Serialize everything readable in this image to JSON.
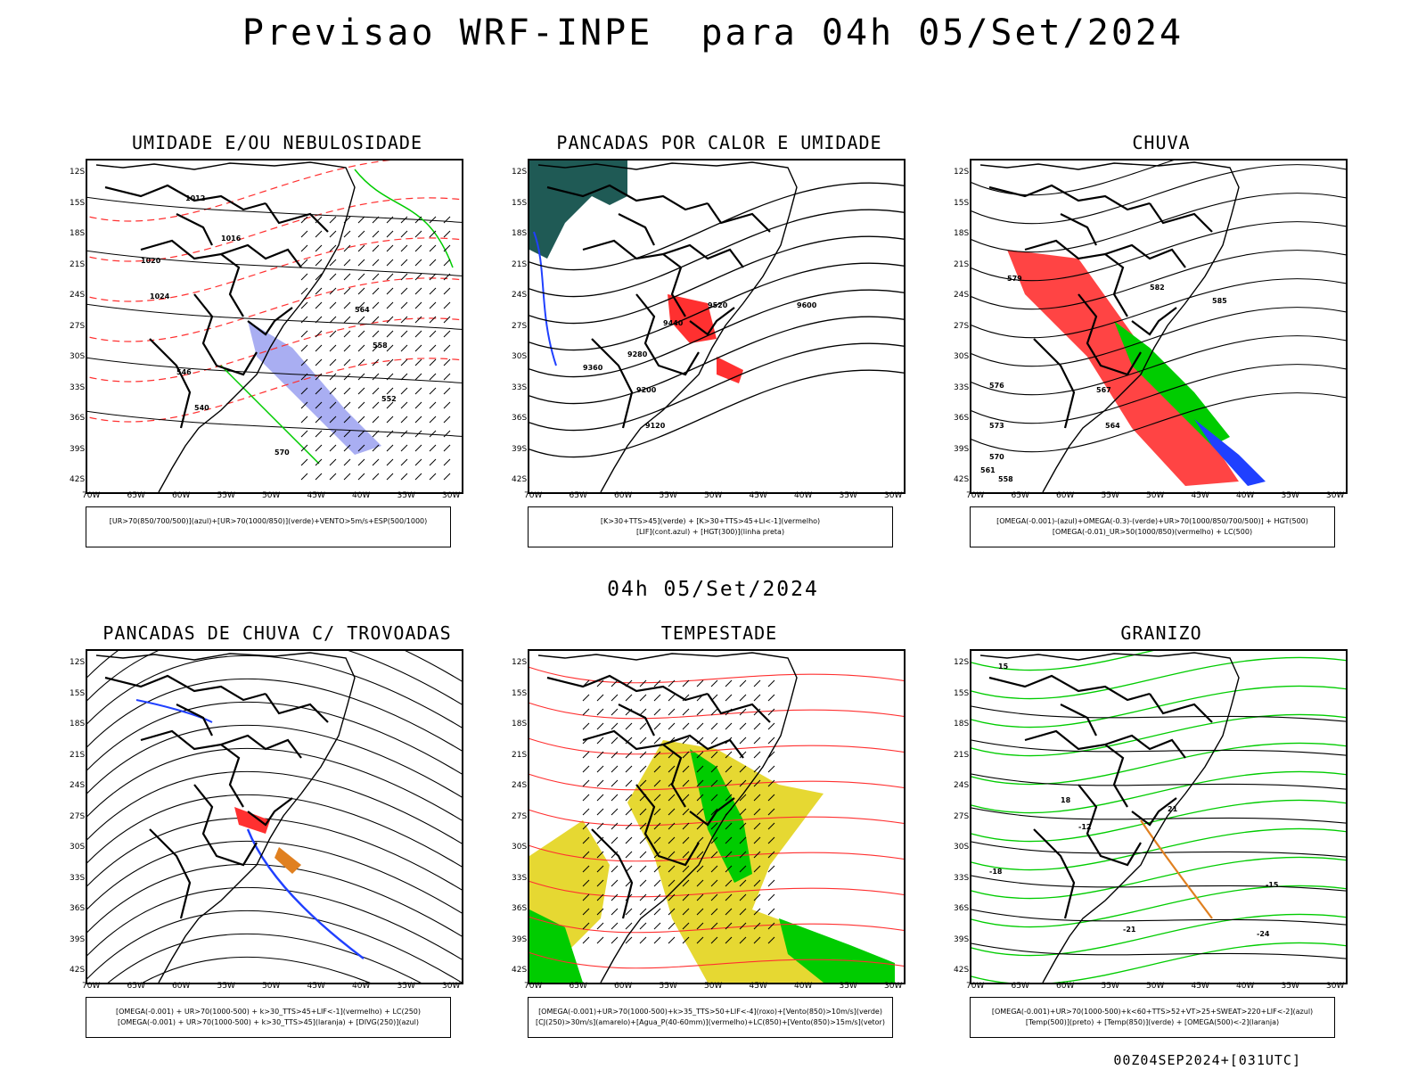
{
  "title": "Previsao WRF-INPE  para 04h 05/Set/2024",
  "subtitle": "04h 05/Set/2024",
  "footer": "00Z04SEP2024+[031UTC]",
  "lat_labels": [
    "12S",
    "15S",
    "18S",
    "21S",
    "24S",
    "27S",
    "30S",
    "33S",
    "36S",
    "39S",
    "42S"
  ],
  "lon_labels": [
    "70W",
    "65W",
    "60W",
    "55W",
    "50W",
    "45W",
    "40W",
    "35W",
    "30W"
  ],
  "chart_data": [
    {
      "type": "map",
      "title": "UMIDADE E/OU NEBULOSIDADE",
      "legend": [
        "[UR>70(850/700/500)](azul)+[UR>70(1000/850)](verde)+VENTO>5m/s+ESP(500/1000)"
      ],
      "contour_labels": [
        "1012",
        "1016",
        "1020",
        "1024",
        "570",
        "564",
        "558",
        "552",
        "546",
        "540"
      ],
      "lat_range": [
        "42S",
        "12S"
      ],
      "lon_range": [
        "70W",
        "30W"
      ]
    },
    {
      "type": "map",
      "title": "PANCADAS POR CALOR E UMIDADE",
      "legend": [
        "[K>30+TTS>45](verde)  +  [K>30+TTS>45+LI<-1](vermelho)",
        "[LIF](cont.azul)  +  [HGT(300)](linha preta)"
      ],
      "contour_labels": [
        "9600",
        "9520",
        "9440",
        "9360",
        "9280",
        "9200",
        "9120"
      ],
      "lat_range": [
        "42S",
        "12S"
      ],
      "lon_range": [
        "70W",
        "30W"
      ]
    },
    {
      "type": "map",
      "title": "CHUVA",
      "legend": [
        "[OMEGA(-0.001)-(azul)+OMEGA(-0.3)-(verde)+UR>70(1000/850/700/500)]  +  HGT(500)",
        "[OMEGA(-0.01)_UR>50(1000/850)(vermelho)  +  LC(500)"
      ],
      "contour_labels": [
        "585",
        "582",
        "579",
        "576",
        "573",
        "570",
        "567",
        "564",
        "561",
        "558"
      ],
      "lat_range": [
        "42S",
        "12S"
      ],
      "lon_range": [
        "70W",
        "30W"
      ]
    },
    {
      "type": "map",
      "title": "PANCADAS DE CHUVA C/ TROVOADAS",
      "legend": [
        "[OMEGA(-0.001)  +  UR>70(1000-500)  +  k>30_TTS>45+LIF<-1](vermelho)  +  LC(250)",
        "[OMEGA(-0.001)  +  UR>70(1000-500)  +  k>30_TTS>45](laranja)  +  [DIVG(250)](azul)"
      ],
      "lat_range": [
        "42S",
        "12S"
      ],
      "lon_range": [
        "70W",
        "30W"
      ]
    },
    {
      "type": "map",
      "title": "TEMPESTADE",
      "legend": [
        "[OMEGA(-0.001)+UR>70(1000-500)+k>35_TTS>50+LIF<-4](roxo)+[Vento(850)>10m/s](verde)",
        "[CJ(250)>30m/s](amarelo)+[Agua_P(40-60mm)](vermelho)+LC(850)+[Vento(850)>15m/s](vetor)"
      ],
      "lat_range": [
        "42S",
        "12S"
      ],
      "lon_range": [
        "70W",
        "30W"
      ]
    },
    {
      "type": "map",
      "title": "GRANIZO",
      "legend": [
        "[OMEGA(-0.001)+UR>70(1000-500)+k<60+TTS>52+VT>25+SWEAT>220+LIF<-2](azul)",
        "[Temp(500)](preto)  +  [Temp(850)](verde)  +  [OMEGA(500)<-2](laranja)"
      ],
      "contour_labels": [
        "-12",
        "-15",
        "-18",
        "-21",
        "-24",
        "15",
        "18",
        "21"
      ],
      "lat_range": [
        "42S",
        "12S"
      ],
      "lon_range": [
        "70W",
        "30W"
      ]
    }
  ],
  "colors": {
    "red": "#ff3030",
    "green": "#00cc00",
    "blue": "#2040ff",
    "yellow": "#e6d832",
    "teal": "#1f5a55",
    "orange": "#e08020",
    "lavender": "#9aa0f0"
  }
}
